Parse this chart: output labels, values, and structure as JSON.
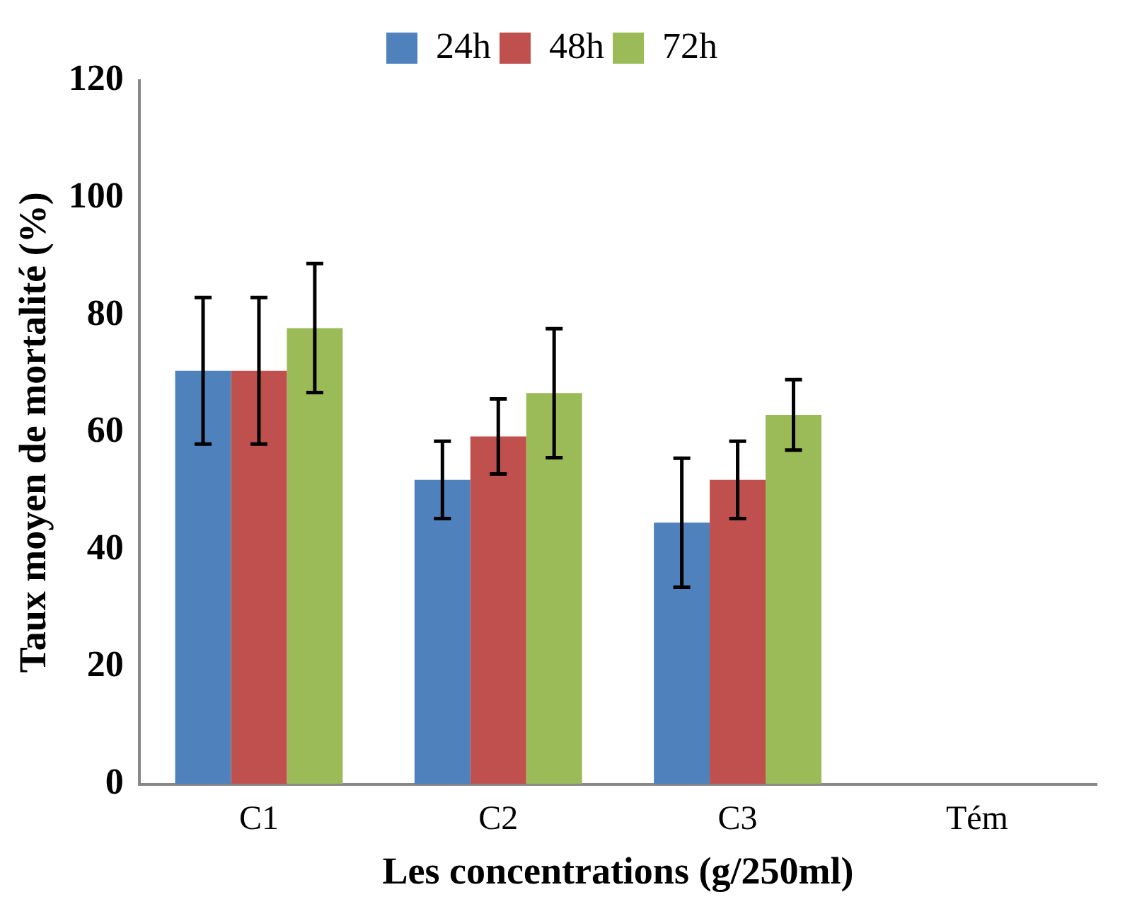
{
  "chart_data": {
    "type": "bar",
    "xlabel": "Les concentrations (g/250ml)",
    "ylabel": "Taux moyen de mortalité (%)",
    "categories": [
      "C1",
      "C2",
      "C3",
      "Tém"
    ],
    "series": [
      {
        "name": "24h",
        "color": "#4f81bd",
        "values": [
          70.5,
          51.9,
          44.6,
          0
        ],
        "errors": [
          12.5,
          6.6,
          11,
          null
        ]
      },
      {
        "name": "48h",
        "color": "#c0504d",
        "values": [
          70.5,
          59.3,
          51.9,
          0
        ],
        "errors": [
          12.5,
          6.4,
          6.6,
          null
        ]
      },
      {
        "name": "72h",
        "color": "#9bbb59",
        "values": [
          77.8,
          66.7,
          63,
          0
        ],
        "errors": [
          11,
          11,
          6,
          null
        ]
      }
    ],
    "ylim": [
      0,
      120
    ],
    "yticks": [
      0,
      20,
      40,
      60,
      80,
      100,
      120
    ],
    "grid": false,
    "legend": "top"
  }
}
